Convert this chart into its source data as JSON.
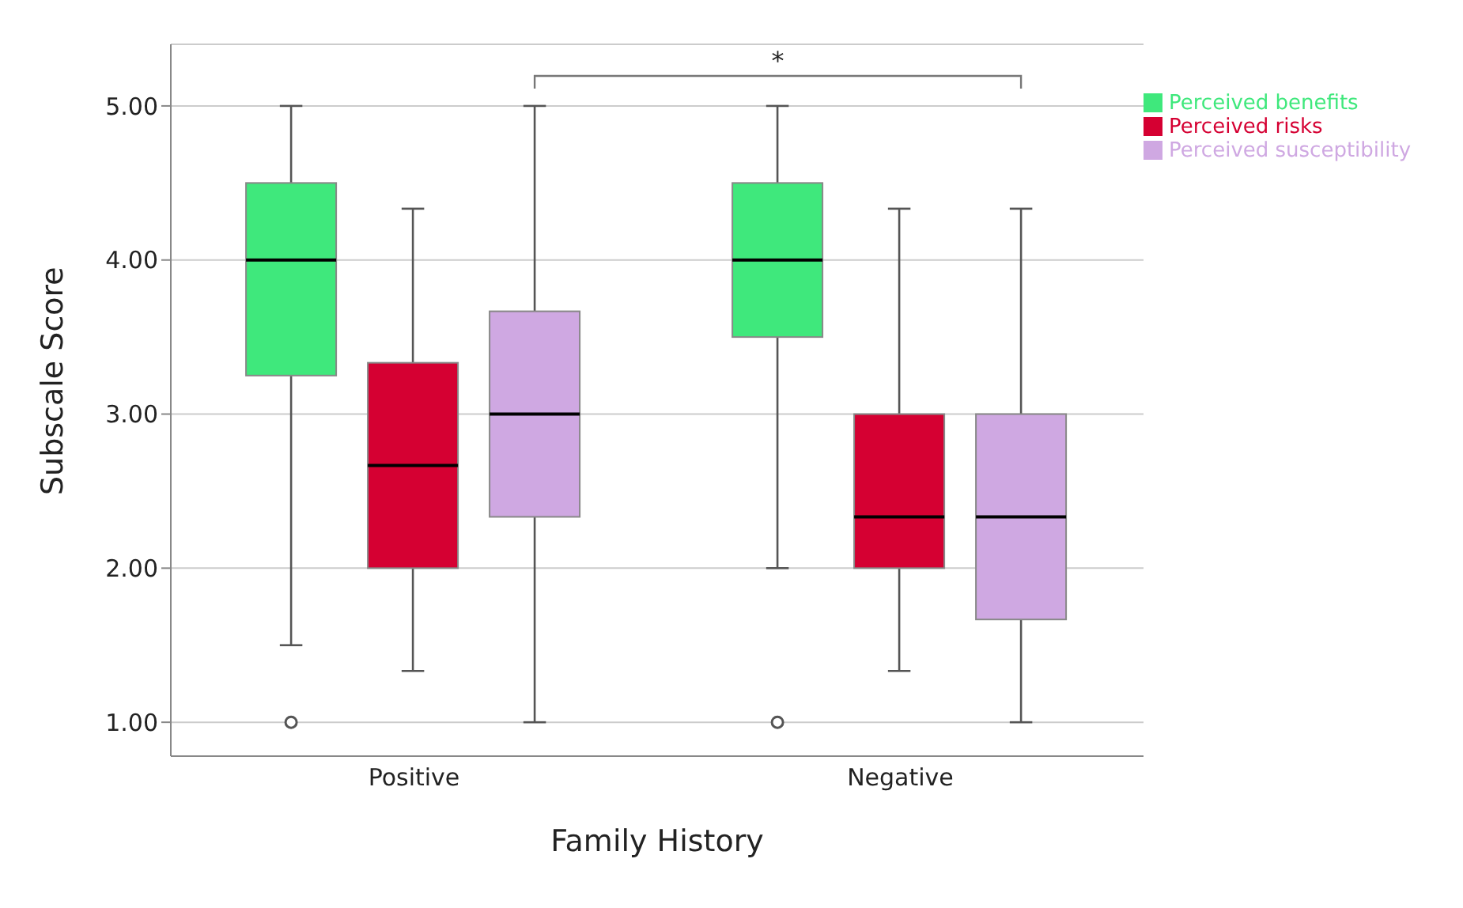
{
  "chart_data": {
    "type": "box",
    "xlabel": "Family History",
    "ylabel": "Subscale Score",
    "categories": [
      "Positive",
      "Negative"
    ],
    "ylim": [
      0.78,
      5.4
    ],
    "yticks": [
      {
        "value": 1,
        "label": "1.00"
      },
      {
        "value": 2,
        "label": "2.00"
      },
      {
        "value": 3,
        "label": "3.00"
      },
      {
        "value": 4,
        "label": "4.00"
      },
      {
        "value": 5,
        "label": "5.00"
      }
    ],
    "grid": "y",
    "legend": "top right",
    "marker": "circle",
    "annotations": [
      "*"
    ],
    "series": [
      {
        "name": "Perceived benefits",
        "color": "#3fe87c",
        "boxes": [
          {
            "low": 1.5,
            "q1": 3.25,
            "median": 4,
            "q3": 4.5,
            "high": 5,
            "outliers": [
              1
            ]
          },
          {
            "low": 2,
            "q1": 3.5,
            "median": 4,
            "q3": 4.5,
            "high": 5,
            "outliers": [
              1
            ]
          }
        ]
      },
      {
        "name": "Perceived risks",
        "color": "#d50032",
        "boxes": [
          {
            "low": 1.333,
            "q1": 2,
            "median": 2.667,
            "q3": 3.333,
            "high": 4.333
          },
          {
            "low": 1.333,
            "q1": 2,
            "median": 2.333,
            "q3": 3,
            "high": 4.333
          }
        ]
      },
      {
        "name": "Perceived susceptibility",
        "color": "#cfa8e2",
        "boxes": [
          {
            "low": 1,
            "q1": 2.333,
            "median": 3,
            "q3": 3.667,
            "high": 5
          },
          {
            "low": 1,
            "q1": 1.667,
            "median": 2.333,
            "q3": 3,
            "high": 4.333
          }
        ]
      }
    ]
  }
}
